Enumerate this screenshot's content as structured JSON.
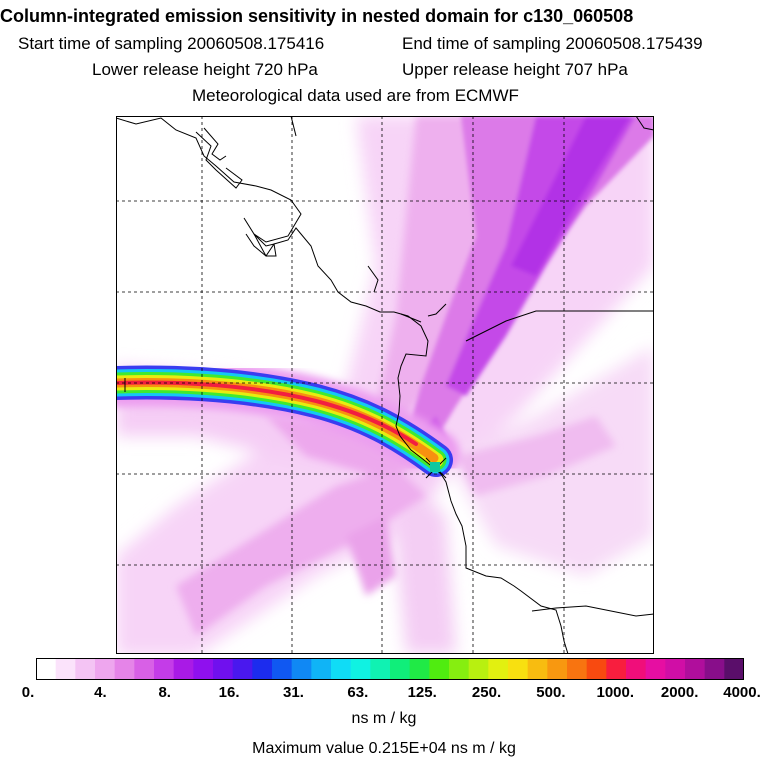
{
  "header": {
    "title": "Column-integrated emission sensitivity in nested domain for c130_060508",
    "start_time": "Start time of sampling 20060508.175416",
    "end_time": "End time of sampling 20060508.175439",
    "lower_height": "Lower release height  720 hPa",
    "upper_height": "Upper release height  707 hPa",
    "met_data": "Meteorological data used are from ECMWF"
  },
  "colorbar": {
    "labels": [
      "0.",
      "4.",
      "8.",
      "16.",
      "31.",
      "63.",
      "125.",
      "250.",
      "500.",
      "1000.",
      "2000.",
      "4000."
    ],
    "colors": [
      "#ffffff",
      "#fbe3fb",
      "#f4c4f4",
      "#eea6ee",
      "#e584e8",
      "#d860e6",
      "#c43ce8",
      "#a91ae6",
      "#8f10ee",
      "#7010ee",
      "#4a18ee",
      "#1c2cee",
      "#1058f2",
      "#1088f4",
      "#10b4f6",
      "#10dcf6",
      "#10f2e2",
      "#10f2b2",
      "#10ee7a",
      "#20ea46",
      "#50ec10",
      "#86ee10",
      "#b8f010",
      "#e2f010",
      "#f8e010",
      "#f8bc10",
      "#f89810",
      "#f87410",
      "#f84a10",
      "#f81e3e",
      "#f00e7a",
      "#e60ea2",
      "#d00ea6",
      "#b00e9c",
      "#880e8a",
      "#5a0e6a"
    ]
  },
  "units": "ns m / kg",
  "max_value": "Maximum value  0.215E+04 ns m / kg"
}
